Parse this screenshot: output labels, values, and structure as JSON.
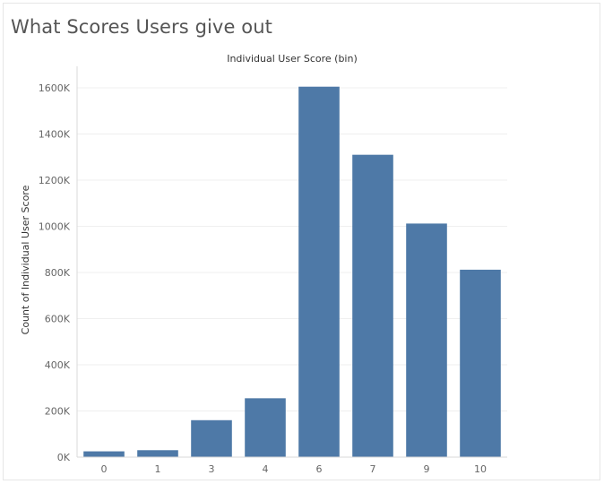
{
  "page": {
    "title": "What Scores Users give out"
  },
  "colors": {
    "bar": "#4e79a7",
    "gridline": "#efefef",
    "axis": "#d9d9d9"
  },
  "chart_data": {
    "type": "bar",
    "title": "",
    "xlabel": "Individual User Score (bin)",
    "ylabel": "Count of Individual User Score",
    "categories": [
      "0",
      "1",
      "3",
      "4",
      "6",
      "7",
      "9",
      "10"
    ],
    "values": [
      25000,
      30000,
      160000,
      255000,
      1605000,
      1310000,
      1012000,
      812000
    ],
    "ylim": [
      0,
      1600000
    ],
    "yticks": [
      0,
      200000,
      400000,
      600000,
      800000,
      1000000,
      1200000,
      1400000,
      1600000
    ],
    "ytick_labels": [
      "0K",
      "200K",
      "400K",
      "600K",
      "800K",
      "1000K",
      "1200K",
      "1400K",
      "1600K"
    ],
    "x_axis_position": "top",
    "grid": true,
    "legend": "none"
  }
}
